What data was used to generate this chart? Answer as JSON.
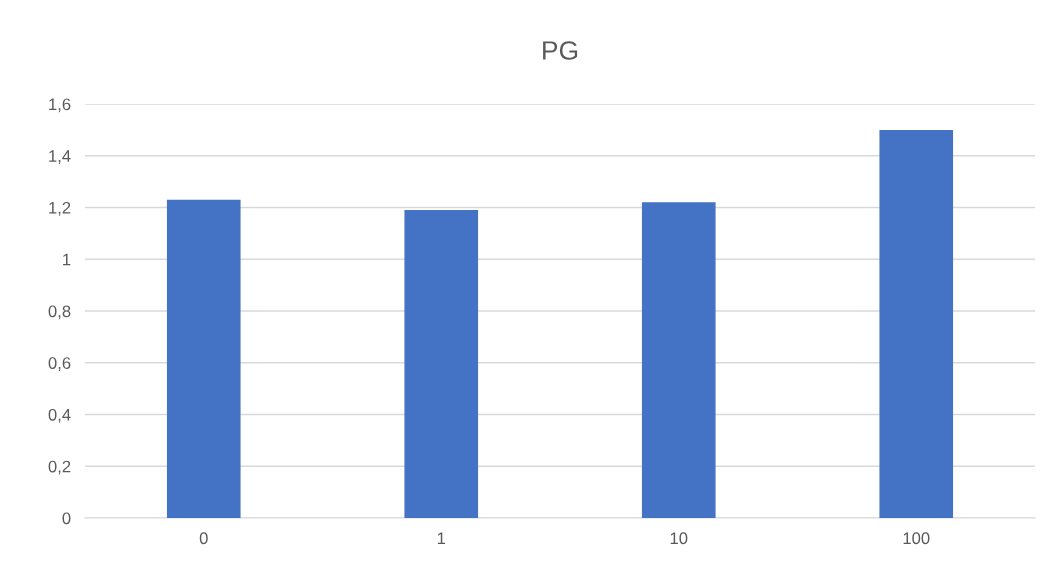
{
  "chart_data": {
    "type": "bar",
    "title": "PG",
    "categories": [
      "0",
      "1",
      "10",
      "100"
    ],
    "values": [
      1.23,
      1.19,
      1.22,
      1.5
    ],
    "color": "#4472c4",
    "ylim": [
      0,
      1.6
    ],
    "yticks": [
      0,
      {
        "value": 0.2,
        "label": "0,2"
      },
      {
        "value": 0.4,
        "label": "0,4"
      },
      {
        "value": 0.6,
        "label": "0,6"
      },
      {
        "value": 0.8,
        "label": "0,8"
      },
      1,
      {
        "value": 1.2,
        "label": "1,2"
      },
      {
        "value": 1.4,
        "label": "1,4"
      },
      {
        "value": 1.6,
        "label": "1,6"
      }
    ],
    "grid": "y",
    "legend": false
  }
}
